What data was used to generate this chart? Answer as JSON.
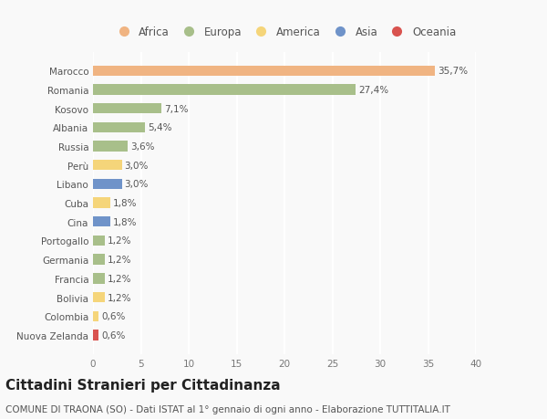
{
  "countries": [
    "Marocco",
    "Romania",
    "Kosovo",
    "Albania",
    "Russia",
    "Perù",
    "Libano",
    "Cuba",
    "Cina",
    "Portogallo",
    "Germania",
    "Francia",
    "Bolivia",
    "Colombia",
    "Nuova Zelanda"
  ],
  "values": [
    35.7,
    27.4,
    7.1,
    5.4,
    3.6,
    3.0,
    3.0,
    1.8,
    1.8,
    1.2,
    1.2,
    1.2,
    1.2,
    0.6,
    0.6
  ],
  "labels": [
    "35,7%",
    "27,4%",
    "7,1%",
    "5,4%",
    "3,6%",
    "3,0%",
    "3,0%",
    "1,8%",
    "1,8%",
    "1,2%",
    "1,2%",
    "1,2%",
    "1,2%",
    "0,6%",
    "0,6%"
  ],
  "colors": [
    "#f0b482",
    "#a8bf8a",
    "#a8bf8a",
    "#a8bf8a",
    "#a8bf8a",
    "#f5d57a",
    "#6f93c9",
    "#f5d57a",
    "#6f93c9",
    "#a8bf8a",
    "#a8bf8a",
    "#a8bf8a",
    "#f5d57a",
    "#f5d57a",
    "#d9534f"
  ],
  "continent_labels": [
    "Africa",
    "Europa",
    "America",
    "Asia",
    "Oceania"
  ],
  "continent_colors": [
    "#f0b482",
    "#a8bf8a",
    "#f5d57a",
    "#6f93c9",
    "#d9534f"
  ],
  "title": "Cittadini Stranieri per Cittadinanza",
  "subtitle": "COMUNE DI TRAONA (SO) - Dati ISTAT al 1° gennaio di ogni anno - Elaborazione TUTTITALIA.IT",
  "xlim": [
    0,
    40
  ],
  "xticks": [
    0,
    5,
    10,
    15,
    20,
    25,
    30,
    35,
    40
  ],
  "background_color": "#f9f9f9",
  "grid_color": "#ffffff",
  "bar_height": 0.55,
  "label_fontsize": 7.5,
  "tick_fontsize": 7.5,
  "title_fontsize": 11,
  "subtitle_fontsize": 7.5,
  "legend_fontsize": 8.5
}
